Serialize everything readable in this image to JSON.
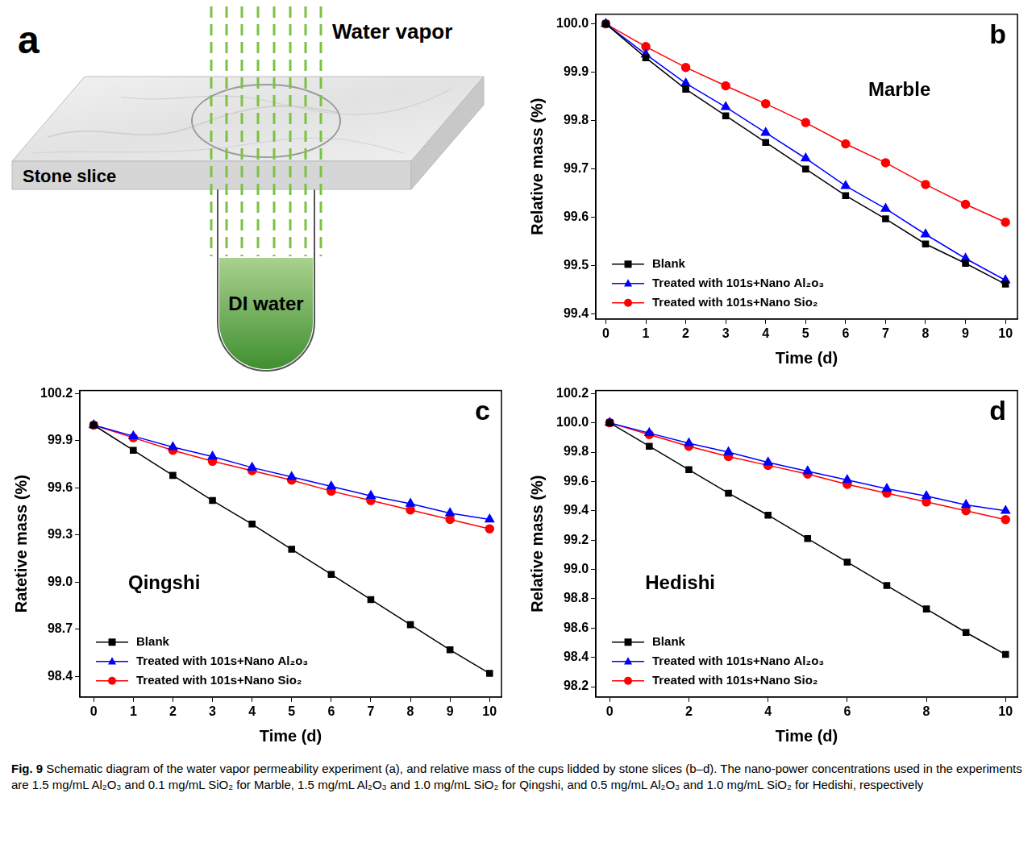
{
  "chart_data": [
    {
      "type": "line",
      "panel": "b",
      "title": "Marble",
      "x_label": "Time (d)",
      "y_label": "Relative mass (%)",
      "x": [
        0,
        1,
        2,
        3,
        4,
        5,
        6,
        7,
        8,
        9,
        10
      ],
      "xlim": [
        -0.25,
        10.3
      ],
      "xticks": [
        0,
        1,
        2,
        3,
        4,
        5,
        6,
        7,
        8,
        9,
        10
      ],
      "ylim": [
        99.39,
        100.02
      ],
      "yticks": [
        99.4,
        99.5,
        99.6,
        99.7,
        99.8,
        99.9,
        {
          "value": 100,
          "label": "100.0"
        }
      ],
      "grid": false,
      "legend": "lower left",
      "series": [
        {
          "name": "Blank",
          "color": "#000000",
          "marker": "square",
          "line_style": "solid",
          "values": [
            100,
            99.93,
            99.865,
            99.81,
            99.755,
            99.7,
            99.645,
            99.597,
            99.545,
            99.505,
            99.462
          ]
        },
        {
          "name": "Treated with 101s+Nano Al₂o₃",
          "color": "#0000ff",
          "marker": "triangle",
          "line_style": "solid",
          "values": [
            100,
            99.937,
            99.877,
            99.828,
            99.775,
            99.722,
            99.665,
            99.618,
            99.565,
            99.515,
            99.47
          ]
        },
        {
          "name": "Treated with 101s+Nano Sio₂",
          "color": "#ff0000",
          "marker": "circle",
          "line_style": "solid",
          "values": [
            100,
            99.953,
            99.91,
            99.872,
            99.835,
            99.796,
            99.752,
            99.713,
            99.668,
            99.627,
            99.59
          ]
        }
      ]
    },
    {
      "type": "line",
      "panel": "c",
      "title": "Qingshi",
      "x_label": "Time (d)",
      "y_label": "Ratetive mass (%)",
      "x": [
        0,
        1,
        2,
        3,
        4,
        5,
        6,
        7,
        8,
        9,
        10
      ],
      "xlim": [
        -0.35,
        10.3
      ],
      "xticks": [
        0,
        1,
        2,
        3,
        4,
        5,
        6,
        7,
        8,
        9,
        10
      ],
      "ylim": [
        98.27,
        100.22
      ],
      "yticks": [
        98.4,
        98.7,
        {
          "value": 99,
          "label": "99.0"
        },
        99.3,
        99.6,
        99.9,
        100.2
      ],
      "grid": false,
      "legend": "lower left",
      "series": [
        {
          "name": "Blank",
          "color": "#000000",
          "marker": "square",
          "line_style": "solid",
          "values": [
            100,
            99.84,
            99.68,
            99.52,
            99.37,
            99.21,
            99.05,
            98.89,
            98.73,
            98.57,
            98.42
          ]
        },
        {
          "name": "Treated with 101s+Nano Al₂o₃",
          "color": "#0000ff",
          "marker": "triangle",
          "line_style": "solid",
          "values": [
            100,
            99.93,
            99.86,
            99.8,
            99.73,
            99.67,
            99.61,
            99.55,
            99.5,
            99.44,
            99.4
          ]
        },
        {
          "name": "Treated with 101s+Nano Sio₂",
          "color": "#ff0000",
          "marker": "circle",
          "line_style": "solid",
          "values": [
            100,
            99.92,
            99.84,
            99.77,
            99.71,
            99.65,
            99.58,
            99.52,
            99.46,
            99.4,
            99.34
          ]
        }
      ]
    },
    {
      "type": "line",
      "panel": "d",
      "title": "Hedishi",
      "x_label": "Time (d)",
      "y_label": "Relative mass (%)",
      "x": [
        0,
        1,
        2,
        3,
        4,
        5,
        6,
        7,
        8,
        9,
        10
      ],
      "xlim": [
        -0.35,
        10.3
      ],
      "xticks": [
        0,
        2,
        4,
        6,
        8,
        10
      ],
      "ylim": [
        98.13,
        100.22
      ],
      "yticks": [
        98.2,
        98.4,
        98.6,
        98.8,
        {
          "value": 99,
          "label": "99.0"
        },
        99.2,
        99.4,
        99.6,
        99.8,
        {
          "value": 100,
          "label": "100.0"
        },
        100.2
      ],
      "grid": false,
      "legend": "lower left",
      "series": [
        {
          "name": "Blank",
          "color": "#000000",
          "marker": "square",
          "line_style": "solid",
          "values": [
            100,
            99.84,
            99.68,
            99.52,
            99.37,
            99.21,
            99.05,
            98.89,
            98.73,
            98.57,
            98.42
          ]
        },
        {
          "name": "Treated with 101s+Nano Al₂o₃",
          "color": "#0000ff",
          "marker": "triangle",
          "line_style": "solid",
          "values": [
            100,
            99.93,
            99.86,
            99.8,
            99.73,
            99.67,
            99.61,
            99.55,
            99.5,
            99.44,
            99.4
          ]
        },
        {
          "name": "Treated with 101s+Nano Sio₂",
          "color": "#ff0000",
          "marker": "circle",
          "line_style": "solid",
          "values": [
            100,
            99.92,
            99.84,
            99.77,
            99.71,
            99.65,
            99.58,
            99.52,
            99.46,
            99.4,
            99.34
          ]
        }
      ]
    }
  ],
  "diagram": {
    "panel": "a",
    "labels": {
      "water_vapor": "Water vapor",
      "stone_slice": "Stone slice",
      "di_water": "DI water"
    }
  },
  "caption": {
    "label": "Fig. 9",
    "text": "Schematic diagram of the water vapor permeability experiment (a), and relative mass of the cups lidded by stone slices (b–d). The nano-power concentrations used in the experiments are 1.5 mg/mL Al₂O₃ and 0.1 mg/mL SiO₂ for Marble, 1.5 mg/mL Al₂O₃ and 1.0 mg/mL SiO₂ for Qingshi, and 0.5 mg/mL Al₂O₃ and 1.0 mg/mL SiO₂ for Hedishi, respectively"
  }
}
